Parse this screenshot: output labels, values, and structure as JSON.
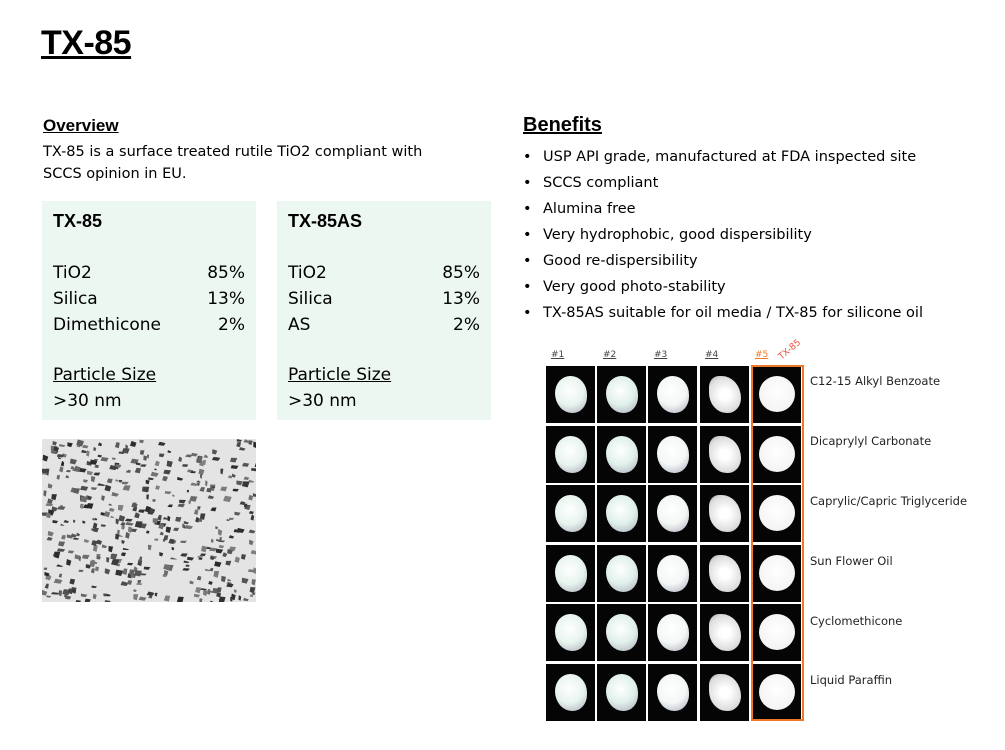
{
  "title": "TX-85",
  "overview": {
    "heading": "Overview",
    "text": "TX-85 is a surface treated rutile TiO2 compliant with SCCS opinion in EU."
  },
  "cards": [
    {
      "name": "TX-85",
      "rows": [
        {
          "k": "TiO2",
          "v": "85%"
        },
        {
          "k": "Silica",
          "v": "13%"
        },
        {
          "k": "Dimethicone",
          "v": "2%"
        }
      ],
      "ps_label": "Particle Size",
      "ps_value": ">30 nm"
    },
    {
      "name": "TX-85AS",
      "rows": [
        {
          "k": "TiO2",
          "v": "85%"
        },
        {
          "k": "Silica",
          "v": "13%"
        },
        {
          "k": "AS",
          "v": "2%"
        }
      ],
      "ps_label": "Particle Size",
      "ps_value": ">30 nm"
    }
  ],
  "benefits": {
    "heading": "Benefits",
    "items": [
      "USP API grade, manufactured at FDA inspected site",
      "SCCS compliant",
      "Alumina free",
      "Very hydrophobic, good dispersibility",
      "Good re-dispersibility",
      "Very good photo-stability",
      "TX-85AS suitable for oil media / TX-85 for silicone oil"
    ]
  },
  "grid": {
    "columns": [
      "#1",
      "#2",
      "#3",
      "#4",
      "#5"
    ],
    "highlight_tag": "TX-85",
    "highlight_color": "#f0782a",
    "rows": [
      "C12-15 Alkyl Benzoate",
      "Dicaprylyl Carbonate",
      "Caprylic/Capric Triglyceride",
      "Sun Flower Oil",
      "Cyclomethicone",
      "Liquid Paraffin"
    ]
  }
}
